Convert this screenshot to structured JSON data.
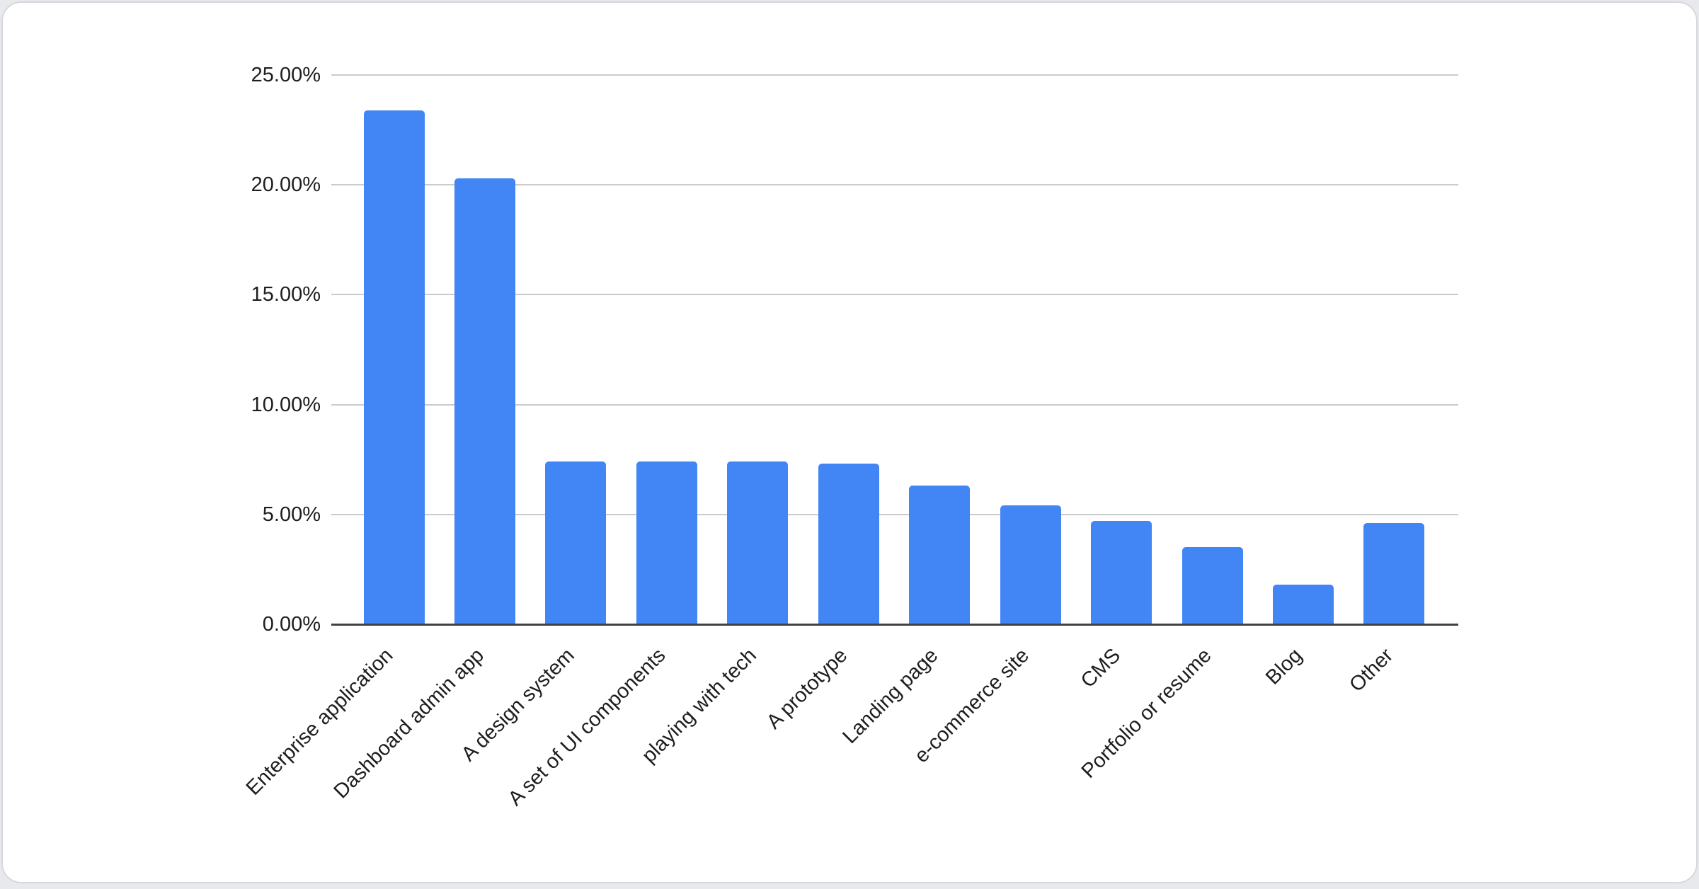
{
  "page": {
    "background_color": "#e8e9ec"
  },
  "card": {
    "background_color": "#ffffff",
    "border_color": "#d6d8dc"
  },
  "chart_data": {
    "type": "bar",
    "title": "",
    "categories": [
      "Enterprise application",
      "Dashboard admin app",
      "A design system",
      "A set of UI components",
      "playing with tech",
      "A prototype",
      "Landing page",
      "e-commerce site",
      "CMS",
      "Portfolio or resume",
      "Blog",
      "Other"
    ],
    "values": [
      23.4,
      20.3,
      7.4,
      7.4,
      7.4,
      7.3,
      6.3,
      5.4,
      4.7,
      3.5,
      1.8,
      4.6
    ],
    "unit": "percent",
    "xlabel": "",
    "ylabel": "",
    "y_ticks": [
      "25.00%",
      "20.00%",
      "15.00%",
      "10.00%",
      "5.00%",
      "0.00%"
    ],
    "y_tick_values": [
      25,
      20,
      15,
      10,
      5,
      0
    ],
    "ylim": [
      0,
      25
    ],
    "grid": true,
    "legend_position": "none",
    "x_label_rotation_deg": -45,
    "bar_color": "#4285f4",
    "gridline_color": "#cbcbcb",
    "baseline_color": "#424242",
    "axis_label_color": "#1e1e1e"
  }
}
